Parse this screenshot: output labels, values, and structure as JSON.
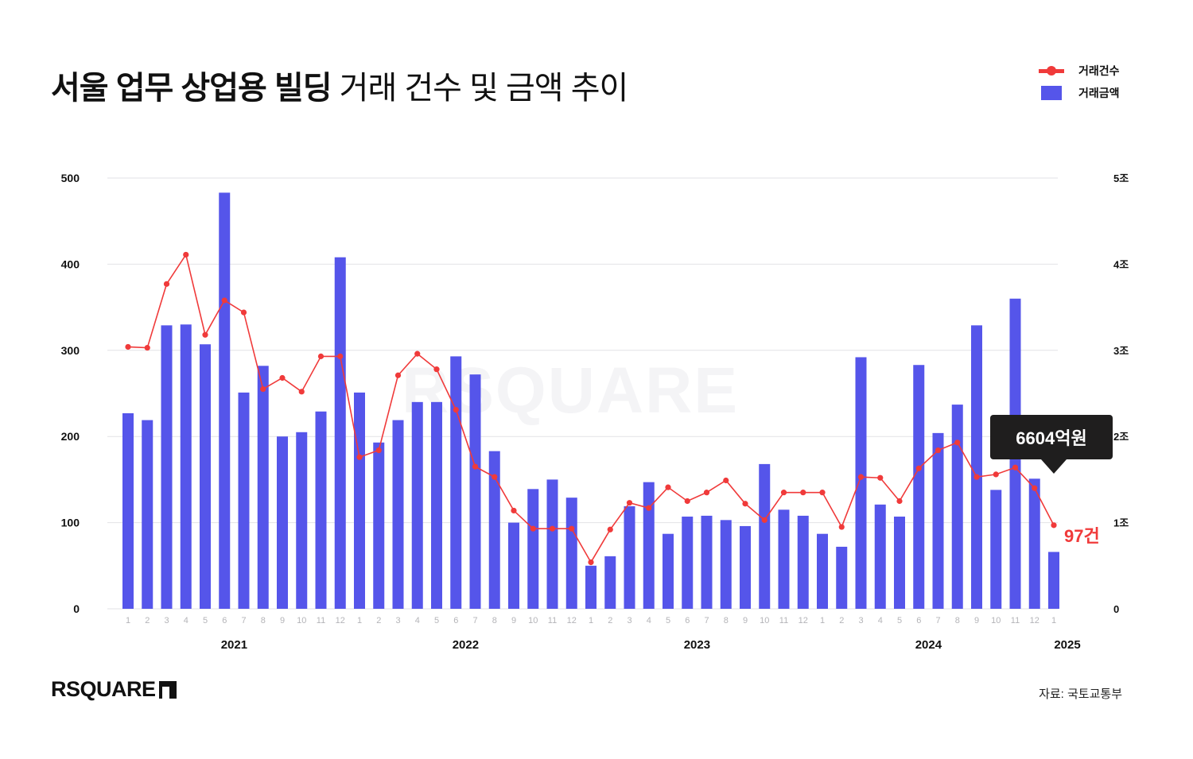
{
  "header": {
    "title_bold": "서울 업무 상업용 빌딩",
    "title_light": "거래 건수 및 금액 추이"
  },
  "legend": {
    "items": [
      {
        "label": "거래건수",
        "type": "line",
        "color": "#f03a3a"
      },
      {
        "label": "거래금액",
        "type": "bar",
        "color": "#5555ea"
      }
    ]
  },
  "watermark": "RSQUARE",
  "callout": {
    "text": "6604억원"
  },
  "end_label": {
    "text": "97건"
  },
  "footer": {
    "logo": "RSQUARE",
    "source": "자료: 국토교통부"
  },
  "colors": {
    "bar": "#5555ea",
    "line": "#f03a3a",
    "grid": "#e2e2e6",
    "tick_month": "#b4b4b8",
    "text": "#111111"
  },
  "chart_data": {
    "type": "bar+line",
    "title": "서울 업무 상업용 빌딩 거래 건수 및 금액 추이",
    "left_axis": {
      "label": "거래건수",
      "ticks": [
        "0",
        "100",
        "200",
        "300",
        "400",
        "500"
      ],
      "range": [
        0,
        500
      ]
    },
    "right_axis": {
      "label": "거래금액",
      "ticks": [
        "0",
        "1조",
        "2조",
        "3조",
        "4조",
        "5조"
      ],
      "range": [
        0,
        5
      ]
    },
    "grid": true,
    "legend_position": "top-right",
    "years": [
      {
        "label": "2021",
        "start": 0,
        "count": 12
      },
      {
        "label": "2022",
        "start": 12,
        "count": 12
      },
      {
        "label": "2023",
        "start": 24,
        "count": 12
      },
      {
        "label": "2024",
        "start": 36,
        "count": 12
      },
      {
        "label": "2025",
        "start": 48,
        "count": 1
      }
    ],
    "categories": [
      "1",
      "2",
      "3",
      "4",
      "5",
      "6",
      "7",
      "8",
      "9",
      "10",
      "11",
      "12",
      "1",
      "2",
      "3",
      "4",
      "5",
      "6",
      "7",
      "8",
      "9",
      "10",
      "11",
      "12",
      "1",
      "2",
      "3",
      "4",
      "5",
      "6",
      "7",
      "8",
      "9",
      "10",
      "11",
      "12",
      "1",
      "2",
      "3",
      "4",
      "5",
      "6",
      "7",
      "8",
      "9",
      "10",
      "11",
      "12",
      "1"
    ],
    "series": [
      {
        "name": "거래금액",
        "type": "bar",
        "axis": "right",
        "unit": "조원",
        "values": [
          2.27,
          2.19,
          3.29,
          3.3,
          3.07,
          4.83,
          2.51,
          2.82,
          2.0,
          2.05,
          2.29,
          4.08,
          2.51,
          1.93,
          2.19,
          2.4,
          2.4,
          2.93,
          2.72,
          1.83,
          1.0,
          1.39,
          1.5,
          1.29,
          0.5,
          0.61,
          1.19,
          1.47,
          0.87,
          1.07,
          1.08,
          1.03,
          0.96,
          1.68,
          1.15,
          1.08,
          0.87,
          0.72,
          2.92,
          1.21,
          1.07,
          2.83,
          2.04,
          2.37,
          3.29,
          1.38,
          3.6,
          1.51,
          0.66
        ]
      },
      {
        "name": "거래건수",
        "type": "line",
        "axis": "left",
        "unit": "건",
        "values": [
          304,
          303,
          377,
          411,
          318,
          358,
          344,
          255,
          268,
          252,
          293,
          293,
          176,
          184,
          271,
          296,
          278,
          231,
          165,
          153,
          114,
          93,
          93,
          93,
          54,
          92,
          123,
          117,
          141,
          125,
          135,
          149,
          122,
          103,
          135,
          135,
          135,
          95,
          153,
          152,
          125,
          163,
          184,
          193,
          153,
          156,
          164,
          140,
          97
        ]
      }
    ],
    "annotations": [
      {
        "text": "6604억원",
        "target": "2025-01 거래금액"
      },
      {
        "text": "97건",
        "target": "2025-01 거래건수"
      }
    ]
  }
}
